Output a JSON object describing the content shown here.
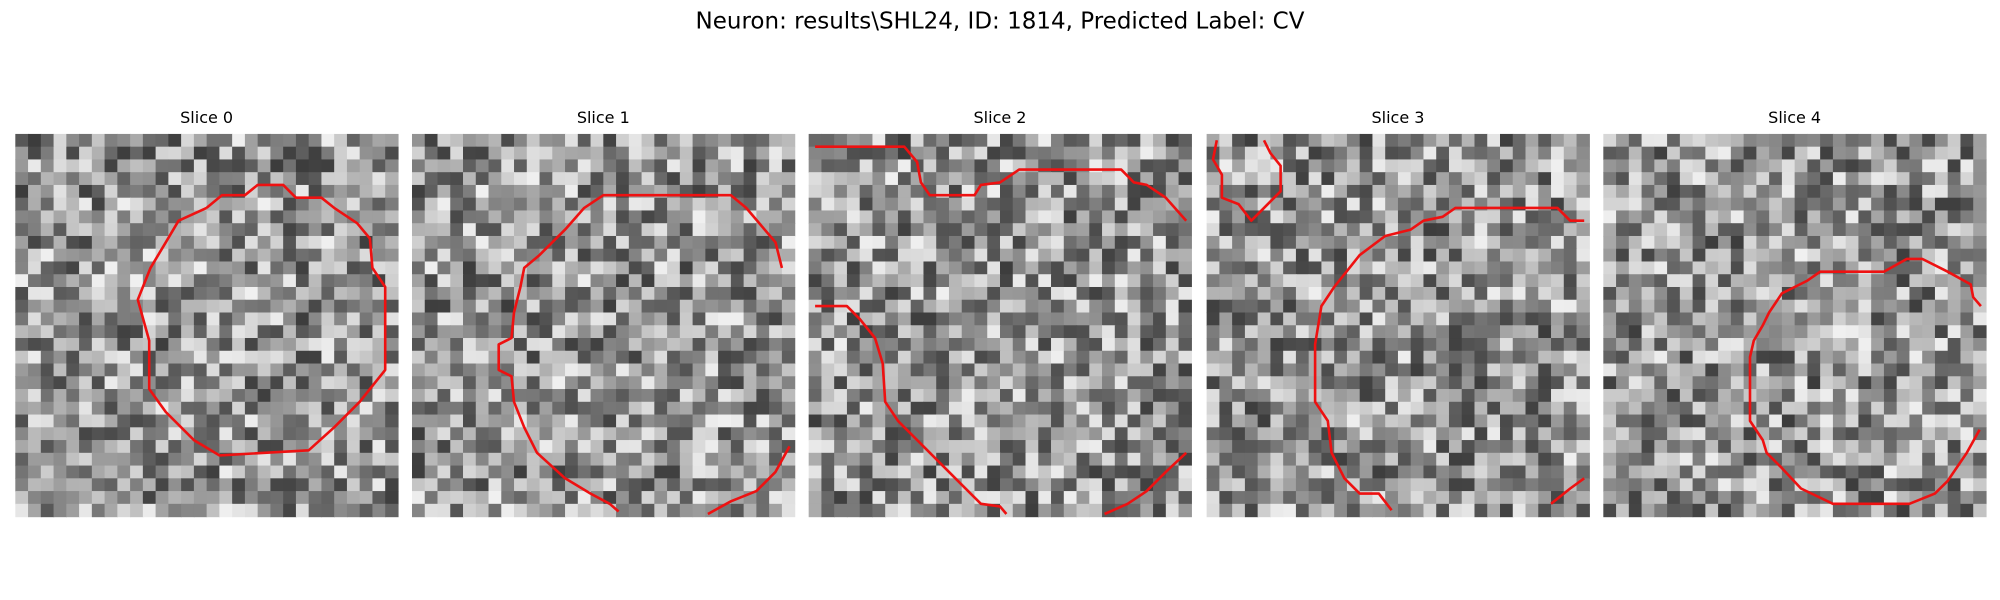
{
  "title": "Neuron: results\\SHL24, ID: 1814, Predicted Label: CV",
  "panels": [
    {
      "title": "Slice 0"
    },
    {
      "title": "Slice 1"
    },
    {
      "title": "Slice 2"
    },
    {
      "title": "Slice 3"
    },
    {
      "title": "Slice 4"
    }
  ]
}
